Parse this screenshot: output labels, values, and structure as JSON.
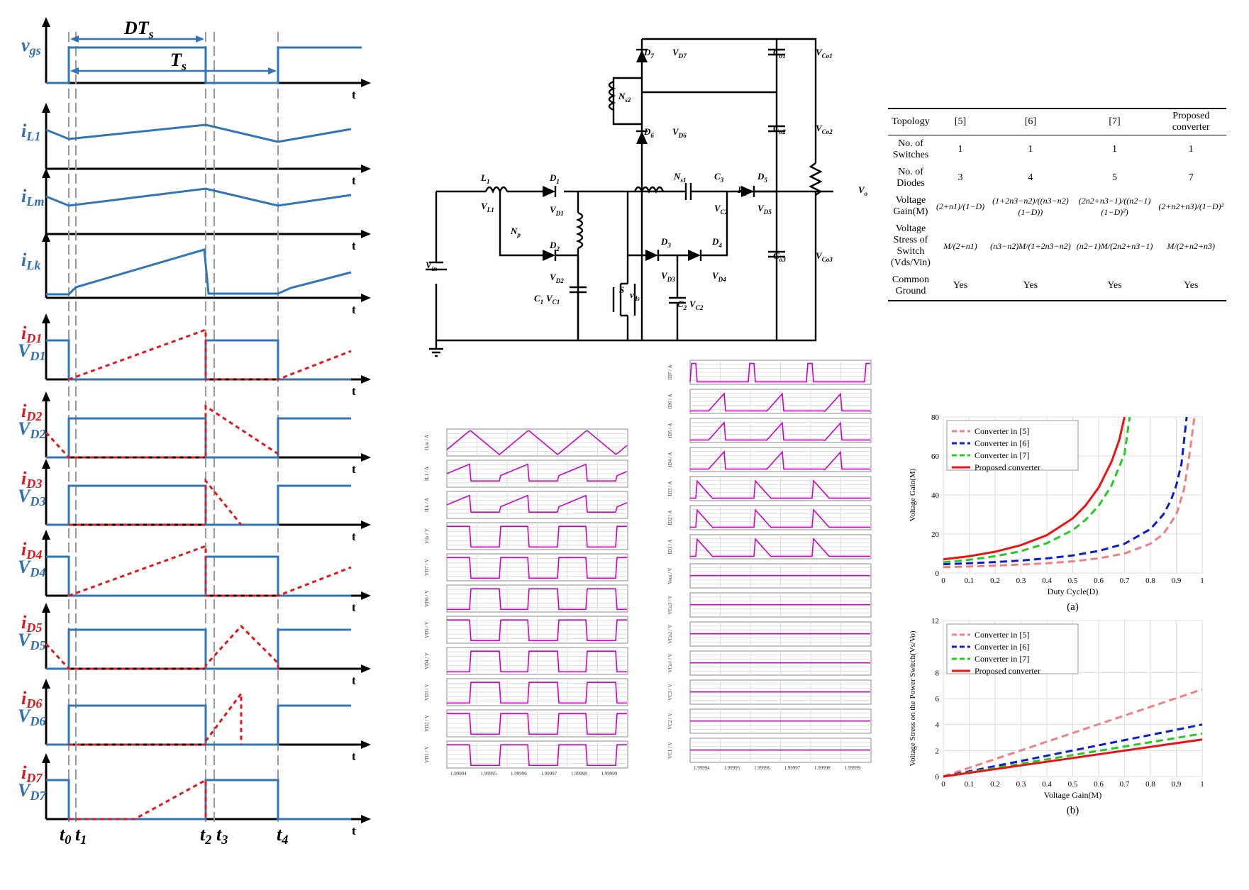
{
  "timing": {
    "signals": [
      {
        "main": "v",
        "sub": "gs",
        "color": "blue"
      },
      {
        "main": "i",
        "sub": "L1",
        "color": "blue"
      },
      {
        "main": "i",
        "sub": "Lm",
        "color": "blue"
      },
      {
        "main": "i",
        "sub": "Lk",
        "color": "blue"
      },
      {
        "main": "i",
        "sub": "D1",
        "color": "red",
        "main2": "V",
        "sub2": "D1"
      },
      {
        "main": "i",
        "sub": "D2",
        "color": "red",
        "main2": "V",
        "sub2": "D2"
      },
      {
        "main": "i",
        "sub": "D3",
        "color": "red",
        "main2": "V",
        "sub2": "D3"
      },
      {
        "main": "i",
        "sub": "D4",
        "color": "red",
        "main2": "V",
        "sub2": "D4"
      },
      {
        "main": "i",
        "sub": "D5",
        "color": "red",
        "main2": "V",
        "sub2": "D5"
      },
      {
        "main": "i",
        "sub": "D6",
        "color": "red",
        "main2": "V",
        "sub2": "D6"
      },
      {
        "main": "i",
        "sub": "D7",
        "color": "red",
        "main2": "V",
        "sub2": "D7"
      }
    ],
    "t_axis": "t",
    "dts_label": "DT",
    "dts_sub": "s",
    "ts_label": "T",
    "ts_sub": "s",
    "instants": [
      {
        "main": "t",
        "sub": "0"
      },
      {
        "main": "t",
        "sub": "1"
      },
      {
        "main": "t",
        "sub": "2"
      },
      {
        "main": "t",
        "sub": "3"
      },
      {
        "main": "t",
        "sub": "4"
      }
    ]
  },
  "circuit": {
    "labels": [
      "L1",
      "VL1",
      "D1",
      "VD1",
      "D2",
      "VD2",
      "Np",
      "Ns1",
      "C3",
      "VC2",
      "D5",
      "VD5",
      "D3",
      "VD3",
      "D4",
      "VD4",
      "Vin",
      "S",
      "vds",
      "C1",
      "VC1",
      "C2",
      "VC2",
      "Co1",
      "VCo1",
      "Co2",
      "VCo2",
      "Co3",
      "VCo3",
      "D7",
      "VD7",
      "D6",
      "VD6",
      "Ns2",
      "Ro",
      "Vo"
    ]
  },
  "table": {
    "headers": [
      "Topology",
      "[5]",
      "[6]",
      "[7]",
      "Proposed converter"
    ],
    "rows": [
      {
        "label": "No. of Switches",
        "values": [
          "1",
          "1",
          "1",
          "1"
        ]
      },
      {
        "label": "No. of Diodes",
        "values": [
          "3",
          "4",
          "5",
          "7"
        ]
      },
      {
        "label": "Voltage Gain(M)",
        "values": [
          "(2+n1)/(1−D)",
          "(1+2n3−n2)/((n3−n2)(1−D))",
          "(2n2+n3−1)/((n2−1)(1−D)²)",
          "(2+n2+n3)/(1−D)²"
        ]
      },
      {
        "label": "Voltage Stress of Switch (Vds/Vin)",
        "values": [
          "M/(2+n1)",
          "(n3−n2)M/(1+2n3−n2)",
          "(n2−1)M/(2n2+n3−1)",
          "M/(2+n2+n3)"
        ]
      },
      {
        "label": "Common Ground",
        "values": [
          "Yes",
          "Yes",
          "Yes",
          "Yes"
        ]
      }
    ]
  },
  "sim": {
    "left_labels": [
      "ILm / A",
      "IL1 / A",
      "ILk / A",
      "Vds / V",
      "VD7 / V",
      "VD6 / V",
      "VD5 / V",
      "VD4 / V",
      "VD3 / V",
      "VD2 / V",
      "VD1 / V"
    ],
    "right_labels": [
      "ID7 / A",
      "ID6 / A",
      "ID5 / A",
      "ID4 / A",
      "ID3 / A",
      "ID2 / A",
      "ID1 / A",
      "Vout / V",
      "VCo3 / V",
      "VCo2 / V",
      "VCo1 / V",
      "VC3 / V",
      "VC2 / V",
      "VC1 / V"
    ],
    "time_ticks": [
      "1.99994",
      "1.99995",
      "1.99996",
      "1.99997",
      "1.99998",
      "1.99999"
    ]
  },
  "chart_data": [
    {
      "type": "line",
      "caption": "(a)",
      "xlabel": "Duty Cycle(D)",
      "ylabel": "Voltage Gain(M)",
      "xlim": [
        0,
        1
      ],
      "ylim": [
        0,
        80
      ],
      "xticks": [
        "0",
        "0.1",
        "0.2",
        "0.3",
        "0.4",
        "0.5",
        "0.6",
        "0.7",
        "0.8",
        "0.9",
        "1"
      ],
      "yticks": [
        "0",
        "20",
        "40",
        "60",
        "80"
      ],
      "grid": true,
      "legend_position": "top-left",
      "series": [
        {
          "name": "Converter in [5]",
          "color": "#f08080",
          "dashed": true,
          "x": [
            0,
            0.1,
            0.2,
            0.3,
            0.4,
            0.5,
            0.6,
            0.7,
            0.8,
            0.85,
            0.9,
            0.93,
            0.95,
            0.97
          ],
          "y": [
            3,
            3.3,
            3.8,
            4.3,
            5,
            6,
            7.5,
            10,
            15,
            20,
            30,
            43,
            60,
            80
          ]
        },
        {
          "name": "Converter in [6]",
          "color": "#0a1bd6",
          "dashed": true,
          "x": [
            0,
            0.1,
            0.2,
            0.3,
            0.4,
            0.5,
            0.6,
            0.7,
            0.8,
            0.85,
            0.88,
            0.9,
            0.92,
            0.94
          ],
          "y": [
            4.5,
            5,
            5.6,
            6.4,
            7.5,
            9,
            11.3,
            15,
            22.5,
            30,
            37.5,
            45,
            56,
            80
          ]
        },
        {
          "name": "Converter in [7]",
          "color": "#22cc22",
          "dashed": true,
          "x": [
            0,
            0.1,
            0.2,
            0.3,
            0.4,
            0.5,
            0.55,
            0.6,
            0.65,
            0.7,
            0.72
          ],
          "y": [
            5.5,
            6.8,
            8.6,
            11.2,
            15.3,
            22,
            27.3,
            34.4,
            44.9,
            61.1,
            80
          ]
        },
        {
          "name": "Proposed converter",
          "color": "#ee1111",
          "dashed": false,
          "x": [
            0,
            0.1,
            0.2,
            0.3,
            0.4,
            0.5,
            0.55,
            0.6,
            0.65,
            0.68,
            0.7
          ],
          "y": [
            7,
            8.6,
            10.9,
            14.3,
            19.4,
            28,
            34.7,
            43.8,
            57.1,
            68.4,
            80
          ]
        }
      ]
    },
    {
      "type": "line",
      "caption": "(b)",
      "xlabel": "Voltage Gain(M)",
      "ylabel": "Voltage Stress on the Power Switch(Vs/Vo)",
      "xlim": [
        0,
        1
      ],
      "ylim": [
        0,
        12
      ],
      "xticks": [
        "0",
        "0.1",
        "0.2",
        "0.3",
        "0.4",
        "0.5",
        "0.6",
        "0.7",
        "0.8",
        "0.9",
        "1"
      ],
      "yticks": [
        "0",
        "2",
        "4",
        "6",
        "8",
        "12"
      ],
      "grid": true,
      "legend_position": "top-left",
      "series": [
        {
          "name": "Converter in [5]",
          "color": "#f08080",
          "dashed": true,
          "x": [
            0,
            1
          ],
          "y": [
            0,
            6.7
          ]
        },
        {
          "name": "Converter in [6]",
          "color": "#0a1bd6",
          "dashed": true,
          "x": [
            0,
            1
          ],
          "y": [
            0,
            4
          ]
        },
        {
          "name": "Converter in [7]",
          "color": "#22cc22",
          "dashed": true,
          "x": [
            0,
            1
          ],
          "y": [
            0,
            3.3
          ]
        },
        {
          "name": "Proposed converter",
          "color": "#ee1111",
          "dashed": false,
          "x": [
            0,
            1
          ],
          "y": [
            0,
            2.85
          ]
        }
      ]
    }
  ]
}
